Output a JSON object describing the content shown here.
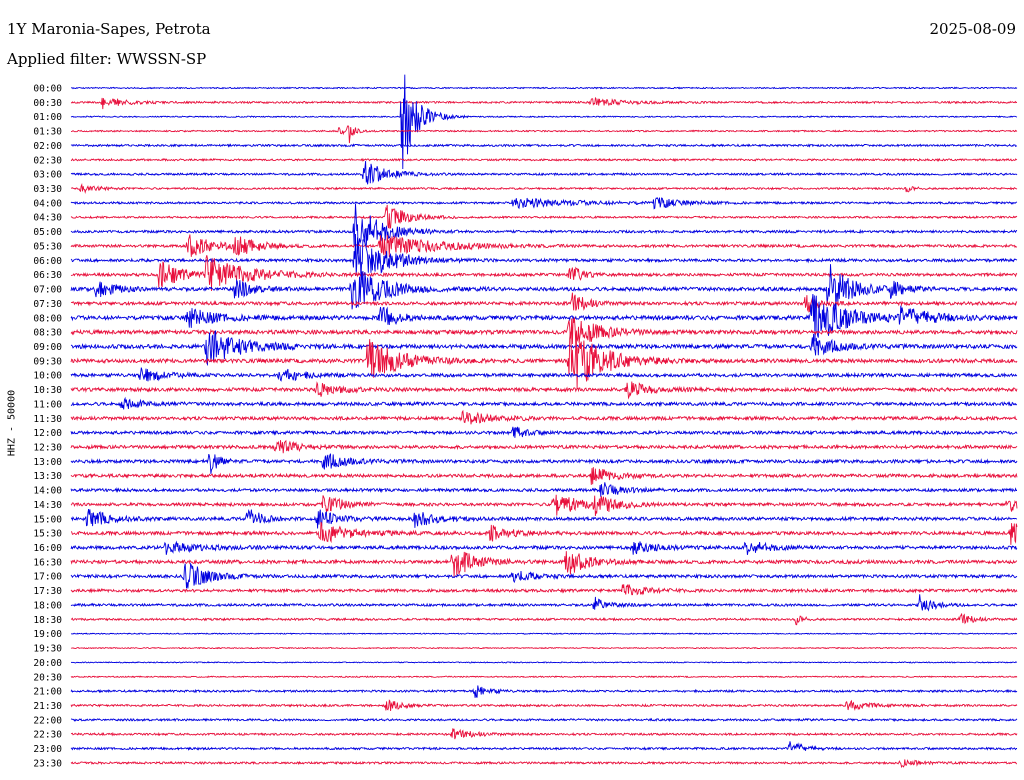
{
  "header": {
    "station": "1Y Maronia-Sapes, Petrota",
    "date": "2025-08-09",
    "filter": "Applied filter: WWSSN-SP"
  },
  "chart_data": {
    "type": "line",
    "subtype": "helicorder",
    "ylabel": "HHZ - 50000",
    "row_labels": [
      "00:00",
      "00:30",
      "01:00",
      "01:30",
      "02:00",
      "02:30",
      "03:00",
      "03:30",
      "04:00",
      "04:30",
      "05:00",
      "05:30",
      "06:00",
      "06:30",
      "07:00",
      "07:30",
      "08:00",
      "08:30",
      "09:00",
      "09:30",
      "10:00",
      "10:30",
      "11:00",
      "11:30",
      "12:00",
      "12:30",
      "13:00",
      "13:30",
      "14:00",
      "14:30",
      "15:00",
      "15:30",
      "16:00",
      "16:30",
      "17:00",
      "17:30",
      "18:00",
      "18:30",
      "19:00",
      "19:30",
      "20:00",
      "20:30",
      "21:00",
      "21:30",
      "22:00",
      "22:30",
      "23:00",
      "23:30"
    ],
    "row_duration_minutes": 30,
    "series_colors": [
      "#0000e0",
      "#e8103c"
    ],
    "noise_level": [
      0.6,
      0.9,
      0.6,
      0.7,
      1.0,
      0.9,
      1.0,
      0.9,
      1.0,
      0.9,
      1.2,
      1.3,
      1.4,
      1.4,
      1.8,
      1.6,
      2.0,
      1.9,
      2.0,
      1.9,
      1.6,
      1.7,
      1.6,
      1.6,
      1.5,
      1.6,
      1.6,
      1.6,
      1.4,
      1.5,
      1.6,
      1.6,
      1.6,
      1.7,
      1.5,
      1.4,
      1.2,
      1.0,
      0.5,
      0.5,
      0.5,
      0.6,
      1.0,
      1.0,
      1.0,
      1.0,
      1.0,
      1.0
    ],
    "events": [
      {
        "row": 1,
        "minute": 1.0,
        "amplitude": 6,
        "duration_min": 1.0
      },
      {
        "row": 1,
        "minute": 16.5,
        "amplitude": 4,
        "duration_min": 1.5
      },
      {
        "row": 2,
        "minute": 10.5,
        "amplitude": 55,
        "duration_min": 0.7
      },
      {
        "row": 3,
        "minute": 8.5,
        "amplitude": 4,
        "duration_min": 0.5
      },
      {
        "row": 3,
        "minute": 8.8,
        "amplitude": 14,
        "duration_min": 0.2
      },
      {
        "row": 6,
        "minute": 9.3,
        "amplitude": 14,
        "duration_min": 1.0
      },
      {
        "row": 7,
        "minute": 0.3,
        "amplitude": 4,
        "duration_min": 0.8
      },
      {
        "row": 7,
        "minute": 26.5,
        "amplitude": 4,
        "duration_min": 0.3
      },
      {
        "row": 8,
        "minute": 14.0,
        "amplitude": 5,
        "duration_min": 3.0
      },
      {
        "row": 8,
        "minute": 18.5,
        "amplitude": 6,
        "duration_min": 1.0
      },
      {
        "row": 9,
        "minute": 10.0,
        "amplitude": 13,
        "duration_min": 1.0
      },
      {
        "row": 10,
        "minute": 9.0,
        "amplitude": 30,
        "duration_min": 1.2
      },
      {
        "row": 11,
        "minute": 3.7,
        "amplitude": 12,
        "duration_min": 1.2
      },
      {
        "row": 11,
        "minute": 5.2,
        "amplitude": 10,
        "duration_min": 1.0
      },
      {
        "row": 11,
        "minute": 9.8,
        "amplitude": 12,
        "duration_min": 2.5
      },
      {
        "row": 12,
        "minute": 9.0,
        "amplitude": 28,
        "duration_min": 1.5
      },
      {
        "row": 13,
        "minute": 2.8,
        "amplitude": 15,
        "duration_min": 1.0
      },
      {
        "row": 13,
        "minute": 4.3,
        "amplitude": 18,
        "duration_min": 2.0
      },
      {
        "row": 13,
        "minute": 15.8,
        "amplitude": 12,
        "duration_min": 0.5
      },
      {
        "row": 14,
        "minute": 0.8,
        "amplitude": 10,
        "duration_min": 0.8
      },
      {
        "row": 14,
        "minute": 5.2,
        "amplitude": 10,
        "duration_min": 0.8
      },
      {
        "row": 14,
        "minute": 8.9,
        "amplitude": 25,
        "duration_min": 1.5
      },
      {
        "row": 14,
        "minute": 24.0,
        "amplitude": 28,
        "duration_min": 1.0
      },
      {
        "row": 14,
        "minute": 26.0,
        "amplitude": 8,
        "duration_min": 0.6
      },
      {
        "row": 15,
        "minute": 15.9,
        "amplitude": 10,
        "duration_min": 0.7
      },
      {
        "row": 15,
        "minute": 23.3,
        "amplitude": 10,
        "duration_min": 0.6
      },
      {
        "row": 16,
        "minute": 3.7,
        "amplitude": 10,
        "duration_min": 1.2
      },
      {
        "row": 16,
        "minute": 9.8,
        "amplitude": 12,
        "duration_min": 0.8
      },
      {
        "row": 16,
        "minute": 23.5,
        "amplitude": 28,
        "duration_min": 1.5
      },
      {
        "row": 16,
        "minute": 26.3,
        "amplitude": 10,
        "duration_min": 1.5
      },
      {
        "row": 17,
        "minute": 15.8,
        "amplitude": 20,
        "duration_min": 1.2
      },
      {
        "row": 18,
        "minute": 4.3,
        "amplitude": 20,
        "duration_min": 1.5
      },
      {
        "row": 18,
        "minute": 23.5,
        "amplitude": 12,
        "duration_min": 1.0
      },
      {
        "row": 19,
        "minute": 9.4,
        "amplitude": 22,
        "duration_min": 1.5
      },
      {
        "row": 19,
        "minute": 15.8,
        "amplitude": 35,
        "duration_min": 1.5
      },
      {
        "row": 20,
        "minute": 2.2,
        "amplitude": 8,
        "duration_min": 1.0
      },
      {
        "row": 20,
        "minute": 6.6,
        "amplitude": 8,
        "duration_min": 1.0
      },
      {
        "row": 21,
        "minute": 7.8,
        "amplitude": 7,
        "duration_min": 1.0
      },
      {
        "row": 21,
        "minute": 17.6,
        "amplitude": 9,
        "duration_min": 1.0
      },
      {
        "row": 22,
        "minute": 1.6,
        "amplitude": 5,
        "duration_min": 1.0
      },
      {
        "row": 23,
        "minute": 12.4,
        "amplitude": 6,
        "duration_min": 1.5
      },
      {
        "row": 24,
        "minute": 14.0,
        "amplitude": 7,
        "duration_min": 0.6
      },
      {
        "row": 25,
        "minute": 6.5,
        "amplitude": 8,
        "duration_min": 1.0
      },
      {
        "row": 26,
        "minute": 4.4,
        "amplitude": 13,
        "duration_min": 0.4
      },
      {
        "row": 26,
        "minute": 8.0,
        "amplitude": 9,
        "duration_min": 1.0
      },
      {
        "row": 27,
        "minute": 16.5,
        "amplitude": 9,
        "duration_min": 1.0
      },
      {
        "row": 28,
        "minute": 16.8,
        "amplitude": 8,
        "duration_min": 1.0
      },
      {
        "row": 29,
        "minute": 8.0,
        "amplitude": 9,
        "duration_min": 1.0
      },
      {
        "row": 29,
        "minute": 15.3,
        "amplitude": 14,
        "duration_min": 1.0
      },
      {
        "row": 29,
        "minute": 16.6,
        "amplitude": 11,
        "duration_min": 1.0
      },
      {
        "row": 29,
        "minute": 29.7,
        "amplitude": 10,
        "duration_min": 0.4
      },
      {
        "row": 30,
        "minute": 0.5,
        "amplitude": 10,
        "duration_min": 1.0
      },
      {
        "row": 30,
        "minute": 5.6,
        "amplitude": 12,
        "duration_min": 0.6
      },
      {
        "row": 30,
        "minute": 7.8,
        "amplitude": 9,
        "duration_min": 1.0
      },
      {
        "row": 30,
        "minute": 10.9,
        "amplitude": 9,
        "duration_min": 1.0
      },
      {
        "row": 31,
        "minute": 7.9,
        "amplitude": 10,
        "duration_min": 1.5
      },
      {
        "row": 31,
        "minute": 13.3,
        "amplitude": 8,
        "duration_min": 1.0
      },
      {
        "row": 31,
        "minute": 29.8,
        "amplitude": 16,
        "duration_min": 0.6
      },
      {
        "row": 32,
        "minute": 3.0,
        "amplitude": 6,
        "duration_min": 1.5
      },
      {
        "row": 32,
        "minute": 17.8,
        "amplitude": 7,
        "duration_min": 1.0
      },
      {
        "row": 32,
        "minute": 21.4,
        "amplitude": 8,
        "duration_min": 1.0
      },
      {
        "row": 33,
        "minute": 12.1,
        "amplitude": 16,
        "duration_min": 1.0
      },
      {
        "row": 33,
        "minute": 15.7,
        "amplitude": 14,
        "duration_min": 1.0
      },
      {
        "row": 34,
        "minute": 3.6,
        "amplitude": 16,
        "duration_min": 1.0
      },
      {
        "row": 34,
        "minute": 14.0,
        "amplitude": 6,
        "duration_min": 1.0
      },
      {
        "row": 35,
        "minute": 17.5,
        "amplitude": 7,
        "duration_min": 1.0
      },
      {
        "row": 36,
        "minute": 16.6,
        "amplitude": 8,
        "duration_min": 0.6
      },
      {
        "row": 36,
        "minute": 26.9,
        "amplitude": 10,
        "duration_min": 0.6
      },
      {
        "row": 37,
        "minute": 23.0,
        "amplitude": 6,
        "duration_min": 0.3
      },
      {
        "row": 37,
        "minute": 28.2,
        "amplitude": 6,
        "duration_min": 0.6
      },
      {
        "row": 42,
        "minute": 12.8,
        "amplitude": 7,
        "duration_min": 0.6
      },
      {
        "row": 43,
        "minute": 10.0,
        "amplitude": 7,
        "duration_min": 0.6
      },
      {
        "row": 43,
        "minute": 24.6,
        "amplitude": 5,
        "duration_min": 1.0
      },
      {
        "row": 45,
        "minute": 12.1,
        "amplitude": 5,
        "duration_min": 1.0
      },
      {
        "row": 46,
        "minute": 22.8,
        "amplitude": 8,
        "duration_min": 0.6
      },
      {
        "row": 47,
        "minute": 26.3,
        "amplitude": 4,
        "duration_min": 0.8
      }
    ]
  }
}
